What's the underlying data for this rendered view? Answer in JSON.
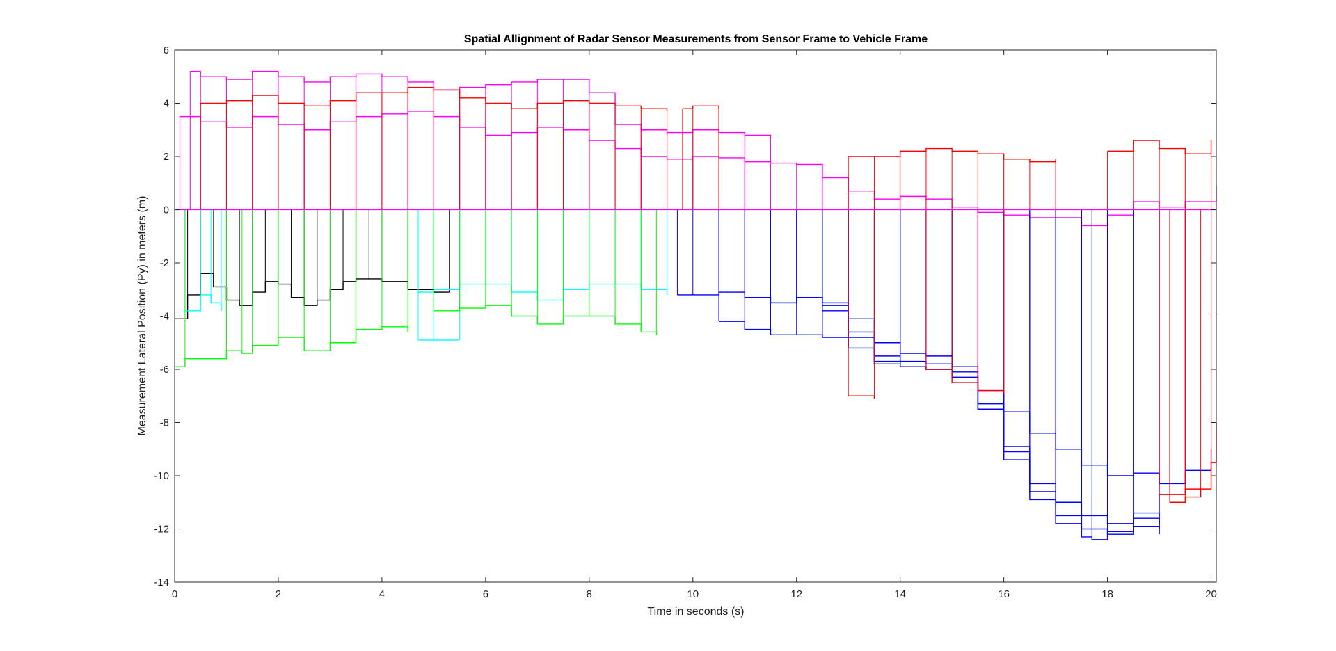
{
  "chart_data": {
    "type": "line",
    "title": "Spatial Allignment of Radar Sensor Measurements from Sensor Frame to Vehicle Frame",
    "xlabel": "Time in seconds (s)",
    "ylabel": "Measurement Lateral Position (Py) in meters (m)",
    "xlim": [
      0,
      20.1
    ],
    "ylim": [
      -14,
      6
    ],
    "xticks": [
      0,
      2,
      4,
      6,
      8,
      10,
      12,
      14,
      16,
      18,
      20
    ],
    "yticks": [
      6,
      4,
      2,
      0,
      -2,
      -4,
      -6,
      -8,
      -10,
      -12,
      -14
    ],
    "grid": false,
    "legend": "none",
    "series": [
      {
        "color": "#ff00ff",
        "x": [
          0.1,
          0.5,
          1.0,
          1.5,
          2.0,
          2.5,
          3.0,
          3.5,
          4.0,
          4.5,
          5.0,
          5.5,
          6.0,
          6.5,
          7.0,
          7.5,
          8.0,
          8.5,
          9.0,
          9.5,
          10.0,
          10.5,
          11.0,
          11.5,
          12.0,
          12.5,
          13.0,
          13.5,
          14.0,
          14.5,
          15.0,
          15.5,
          16.0,
          16.5,
          17.0,
          17.5,
          18.0,
          18.5,
          19.0,
          19.5,
          20.1
        ],
        "y": [
          3.5,
          3.3,
          3.1,
          3.5,
          3.2,
          3.0,
          3.3,
          3.5,
          3.6,
          3.7,
          3.5,
          3.1,
          2.8,
          2.9,
          3.1,
          3.0,
          2.6,
          2.3,
          2.0,
          1.9,
          2.0,
          1.95,
          1.8,
          1.75,
          1.7,
          1.2,
          0.7,
          0.4,
          0.5,
          0.4,
          0.1,
          -0.1,
          -0.2,
          -0.3,
          -0.3,
          -0.6,
          -0.2,
          0.3,
          0.1,
          0.3,
          0.9
        ]
      },
      {
        "color": "#ff00ff",
        "x": [
          0.3,
          0.5,
          1.0,
          1.5,
          2.0,
          2.5,
          3.0,
          3.5,
          4.0,
          4.5,
          5.0,
          5.5,
          6.0,
          6.5,
          7.0,
          7.5,
          8.0,
          8.5,
          9.0,
          9.5
        ],
        "y": [
          5.2,
          5.0,
          4.9,
          5.2,
          5.0,
          4.8,
          5.0,
          5.1,
          5.0,
          4.8,
          4.5,
          4.6,
          4.7,
          4.8,
          4.9,
          4.9,
          4.4,
          3.2,
          3.0,
          2.8
        ]
      },
      {
        "color": "#ff00ff",
        "x": [
          9.5,
          10.0,
          10.5,
          11.0,
          11.5
        ],
        "y": [
          2.9,
          3.0,
          2.9,
          2.8,
          2.7
        ]
      },
      {
        "color": "#ff0000",
        "x": [
          0.5,
          1.0,
          1.5,
          2.0,
          2.5,
          3.0,
          3.5,
          4.0,
          4.5,
          5.0,
          5.5,
          6.0,
          6.5,
          7.0,
          7.5,
          8.0,
          8.5,
          9.0,
          9.5
        ],
        "y": [
          4.0,
          4.1,
          4.3,
          4.0,
          3.9,
          4.1,
          4.4,
          4.4,
          4.6,
          4.5,
          4.2,
          4.0,
          3.8,
          4.0,
          4.1,
          4.0,
          3.9,
          3.8,
          3.7
        ]
      },
      {
        "color": "#ff0000",
        "x": [
          9.8,
          10.0,
          10.5
        ],
        "y": [
          3.8,
          3.9,
          3.8
        ]
      },
      {
        "color": "#ff0000",
        "x": [
          13.0,
          13.5,
          14.0,
          14.5,
          15.0,
          15.5,
          16.0,
          16.5,
          17.0
        ],
        "y": [
          2.0,
          2.0,
          2.2,
          2.3,
          2.2,
          2.1,
          1.9,
          1.8,
          1.9
        ]
      },
      {
        "color": "#ff0000",
        "x": [
          18.0,
          18.5,
          19.0,
          19.5,
          20.0
        ],
        "y": [
          2.2,
          2.6,
          2.3,
          2.1,
          2.6
        ]
      },
      {
        "color": "#000000",
        "x": [
          0.0,
          0.25,
          0.5,
          0.75,
          1.0,
          1.25,
          1.5,
          1.75,
          2.0,
          2.25,
          2.5,
          2.75,
          3.0,
          3.25,
          3.5,
          3.75,
          4.0,
          4.5,
          5.0,
          5.3
        ],
        "y": [
          -4.1,
          -3.2,
          -2.4,
          -2.9,
          -3.4,
          -3.6,
          -3.1,
          -2.7,
          -2.8,
          -3.3,
          -3.6,
          -3.4,
          -3.0,
          -2.7,
          -2.6,
          -2.6,
          -2.7,
          -3.0,
          -3.1,
          -3.1
        ]
      },
      {
        "color": "#00ffff",
        "x": [
          4.7,
          5.0,
          5.5,
          6.0,
          6.5,
          7.0,
          7.5,
          8.0,
          8.5,
          9.0,
          9.5
        ],
        "y": [
          -3.1,
          -3.0,
          -2.8,
          -2.8,
          -3.1,
          -3.4,
          -3.0,
          -2.8,
          -2.8,
          -3.0,
          -3.2
        ]
      },
      {
        "color": "#00ffff",
        "x": [
          0.2,
          0.5,
          0.7,
          0.9
        ],
        "y": [
          -3.8,
          -3.2,
          -3.5,
          -3.8
        ]
      },
      {
        "color": "#00ffff",
        "x": [
          4.7,
          5.0,
          5.5
        ],
        "y": [
          -4.9,
          -4.9,
          -4.9
        ]
      },
      {
        "color": "#00ff00",
        "x": [
          0.0,
          0.2,
          1.0,
          1.3,
          1.5,
          2.0,
          2.5,
          3.0,
          3.5,
          4.0,
          4.5
        ],
        "y": [
          -5.9,
          -5.6,
          -5.3,
          -5.4,
          -5.1,
          -4.8,
          -5.3,
          -5.0,
          -4.5,
          -4.4,
          -4.6
        ]
      },
      {
        "color": "#00ff00",
        "x": [
          5.0,
          5.5,
          6.0,
          6.5,
          7.0,
          7.5,
          8.0,
          8.5,
          9.0,
          9.3
        ],
        "y": [
          -3.8,
          -3.7,
          -3.6,
          -4.0,
          -4.3,
          -4.0,
          -4.0,
          -4.3,
          -4.6,
          -4.7
        ]
      },
      {
        "color": "#0000ff",
        "x": [
          9.7,
          10.0,
          10.5,
          11.0,
          11.5,
          12.0,
          12.5,
          13.0,
          13.5,
          14.0,
          14.5,
          15.0,
          15.5,
          16.0,
          16.5,
          17.0,
          17.5,
          18.0,
          18.5,
          19.0,
          19.5,
          20.0
        ],
        "y": [
          -3.2,
          -3.2,
          -3.1,
          -3.3,
          -3.5,
          -3.3,
          -3.5,
          -4.1,
          -5.0,
          -5.4,
          -5.5,
          -5.9,
          -6.8,
          -7.6,
          -8.4,
          -9.0,
          -9.6,
          -10.0,
          -9.9,
          -10.3,
          -9.8,
          -9.0
        ]
      },
      {
        "color": "#0000ff",
        "x": [
          10.5,
          11.0,
          11.5,
          12.0,
          12.5,
          13.0,
          13.5,
          14.0,
          14.5,
          15.0,
          15.5,
          16.0,
          16.5,
          17.0,
          17.5,
          18.0,
          18.5,
          19.0
        ],
        "y": [
          -4.2,
          -4.5,
          -4.7,
          -4.7,
          -4.8,
          -5.2,
          -5.8,
          -5.9,
          -6.0,
          -6.3,
          -7.5,
          -8.9,
          -10.3,
          -11.0,
          -11.5,
          -11.8,
          -11.4,
          -11.8
        ]
      },
      {
        "color": "#0000ff",
        "x": [
          12.5,
          13.0,
          13.5,
          14.0,
          14.5,
          15.0,
          15.5,
          16.0,
          16.5,
          17.0,
          17.5,
          18.0,
          18.5,
          19.0
        ],
        "y": [
          -3.6,
          -4.6,
          -5.5,
          -5.7,
          -5.8,
          -6.1,
          -7.3,
          -9.1,
          -10.6,
          -11.5,
          -12.0,
          -12.2,
          -11.6,
          -12.0
        ]
      },
      {
        "color": "#0000ff",
        "x": [
          12.5,
          13.0,
          13.5,
          14.0,
          14.5,
          15.0,
          15.5,
          16.0,
          16.5,
          17.0,
          17.5,
          17.7,
          18.0,
          18.5,
          19.0
        ],
        "y": [
          -3.8,
          -4.8,
          -5.7,
          -5.9,
          -6.0,
          -6.3,
          -7.5,
          -9.4,
          -10.9,
          -11.8,
          -12.3,
          -12.4,
          -12.1,
          -11.9,
          -12.2
        ]
      },
      {
        "color": "#ff0000",
        "x": [
          14.5,
          15.0,
          15.5,
          16.0
        ],
        "y": [
          -6.0,
          -6.5,
          -6.8,
          -6.9
        ]
      },
      {
        "color": "#ff0000",
        "x": [
          13.0,
          13.5
        ],
        "y": [
          -7.0,
          -7.1
        ]
      },
      {
        "color": "#ff0000",
        "x": [
          19.0,
          19.5,
          20.0,
          20.1
        ],
        "y": [
          -10.7,
          -10.5,
          -9.5,
          -8.0
        ]
      },
      {
        "color": "#ff0000",
        "x": [
          19.2,
          19.5,
          19.8
        ],
        "y": [
          -11.0,
          -10.8,
          -10.5
        ]
      }
    ]
  }
}
